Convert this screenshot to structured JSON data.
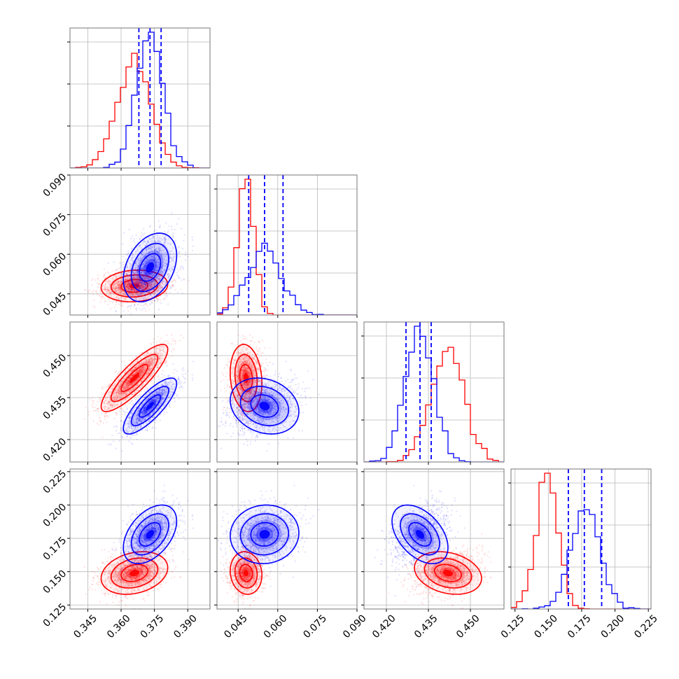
{
  "chart_data": {
    "type": "corner",
    "parameters": 4,
    "grid": true,
    "quantile_lines": {
      "color": "#0000ff",
      "style": "dashed"
    },
    "series": [
      {
        "color": "#ff0000",
        "mean": [
          0.366,
          0.048,
          0.442,
          0.149
        ],
        "std": [
          0.0075,
          0.003,
          0.006,
          0.008
        ],
        "corr": [
          0.1,
          0.85,
          -0.15,
          -0.25
        ]
      },
      {
        "color": "#0000ff",
        "mean": [
          0.373,
          0.055,
          0.432,
          0.178
        ],
        "std": [
          0.006,
          0.0065,
          0.005,
          0.011
        ],
        "corr": [
          0.35,
          0.8,
          -0.2,
          -0.45
        ],
        "quantiles": [
          [
            0.368,
            0.373,
            0.378
          ],
          [
            0.049,
            0.055,
            0.062
          ],
          [
            0.427,
            0.432,
            0.436
          ],
          [
            0.165,
            0.177,
            0.19
          ]
        ]
      }
    ],
    "axes": [
      {
        "range": [
          0.337,
          0.4
        ],
        "ticks": [
          0.345,
          0.36,
          0.375,
          0.39
        ],
        "tick_labels": [
          "0.345",
          "0.360",
          "0.375",
          "0.390"
        ]
      },
      {
        "range": [
          0.037,
          0.09
        ],
        "ticks": [
          0.045,
          0.06,
          0.075,
          0.09
        ],
        "tick_labels": [
          "0.045",
          "0.060",
          "0.075",
          "0.090"
        ]
      },
      {
        "range": [
          0.412,
          0.462
        ],
        "ticks": [
          0.42,
          0.435,
          0.45
        ],
        "tick_labels": [
          "0.420",
          "0.435",
          "0.450"
        ]
      },
      {
        "range": [
          0.122,
          0.227
        ],
        "ticks": [
          0.125,
          0.15,
          0.175,
          0.2,
          0.225
        ],
        "tick_labels": [
          "0.125",
          "0.150",
          "0.175",
          "0.200",
          "0.225"
        ]
      }
    ]
  }
}
